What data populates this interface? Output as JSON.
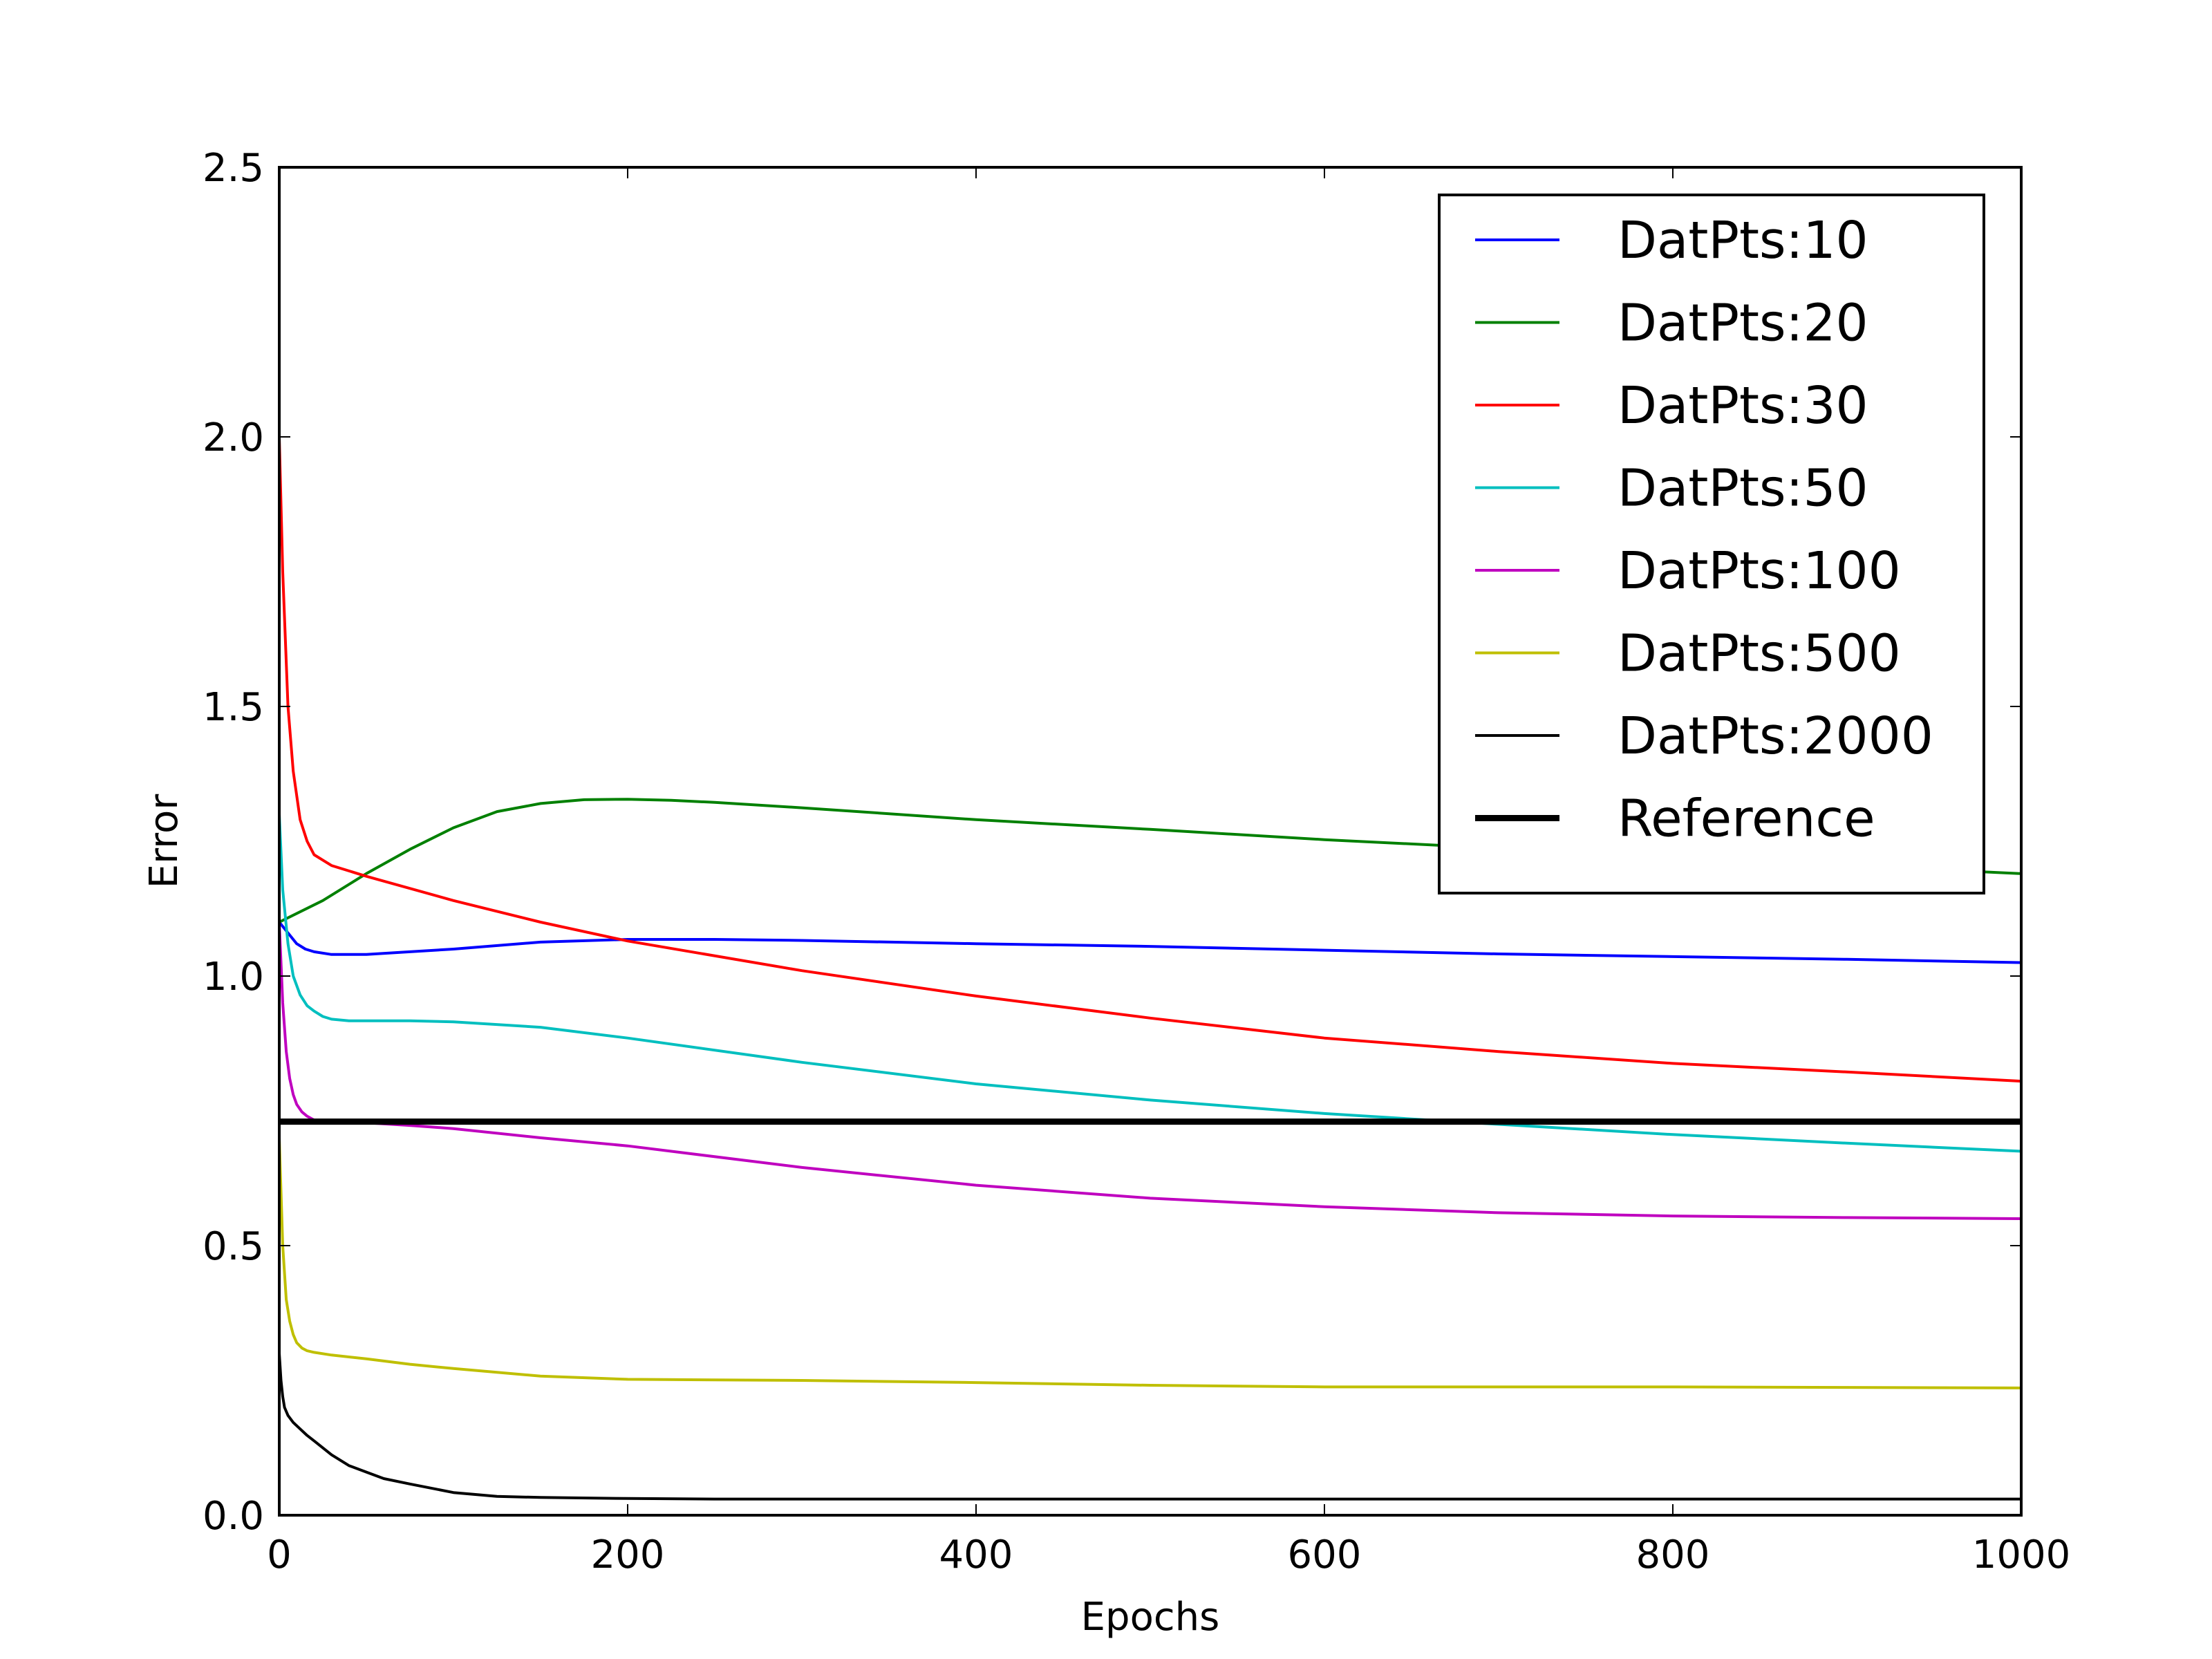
{
  "chart_data": {
    "type": "line",
    "title": "",
    "xlabel": "Epochs",
    "ylabel": "Error",
    "xlim": [
      0,
      1000
    ],
    "ylim": [
      0,
      2.5
    ],
    "xticks": [
      0,
      200,
      400,
      600,
      800,
      1000
    ],
    "xtick_labels": [
      "0",
      "200",
      "400",
      "600",
      "800",
      "1000"
    ],
    "yticks": [
      0,
      0.5,
      1.0,
      1.5,
      2.0,
      2.5
    ],
    "ytick_labels": [
      "0.0",
      "0.5",
      "1.0",
      "1.5",
      "2.0",
      "2.5"
    ],
    "grid": false,
    "legend_position": "top-right",
    "series": [
      {
        "name": "DatPts:10",
        "color": "#0000ff",
        "linewidth": "thin",
        "x": [
          0,
          5,
          10,
          15,
          20,
          30,
          50,
          75,
          100,
          150,
          200,
          250,
          300,
          400,
          500,
          600,
          700,
          800,
          900,
          1000
        ],
        "y": [
          1.1,
          1.08,
          1.06,
          1.05,
          1.045,
          1.04,
          1.04,
          1.045,
          1.05,
          1.063,
          1.068,
          1.068,
          1.066,
          1.06,
          1.055,
          1.048,
          1.041,
          1.036,
          1.031,
          1.025
        ]
      },
      {
        "name": "DatPts:20",
        "color": "#008000",
        "linewidth": "thin",
        "x": [
          0,
          25,
          50,
          75,
          100,
          125,
          150,
          175,
          200,
          225,
          250,
          300,
          400,
          500,
          600,
          700,
          800,
          900,
          1000
        ],
        "y": [
          1.1,
          1.14,
          1.19,
          1.235,
          1.275,
          1.305,
          1.32,
          1.327,
          1.328,
          1.326,
          1.322,
          1.312,
          1.29,
          1.272,
          1.253,
          1.237,
          1.22,
          1.205,
          1.19
        ]
      },
      {
        "name": "DatPts:30",
        "color": "#ff0000",
        "linewidth": "thin",
        "x": [
          0,
          2,
          5,
          8,
          12,
          16,
          20,
          25,
          30,
          40,
          50,
          100,
          150,
          200,
          300,
          400,
          500,
          600,
          700,
          800,
          900,
          1000
        ],
        "y": [
          2.0,
          1.75,
          1.5,
          1.38,
          1.29,
          1.25,
          1.225,
          1.215,
          1.205,
          1.195,
          1.185,
          1.14,
          1.1,
          1.065,
          1.01,
          0.963,
          0.922,
          0.885,
          0.86,
          0.838,
          0.822,
          0.805
        ]
      },
      {
        "name": "DatPts:50",
        "color": "#00bfbf",
        "linewidth": "thin",
        "x": [
          0,
          2,
          5,
          8,
          12,
          16,
          20,
          25,
          30,
          40,
          50,
          75,
          100,
          150,
          200,
          300,
          400,
          500,
          600,
          700,
          800,
          900,
          1000
        ],
        "y": [
          1.3,
          1.16,
          1.06,
          1.0,
          0.965,
          0.945,
          0.935,
          0.925,
          0.92,
          0.917,
          0.917,
          0.917,
          0.915,
          0.905,
          0.885,
          0.84,
          0.8,
          0.77,
          0.745,
          0.725,
          0.706,
          0.69,
          0.675
        ]
      },
      {
        "name": "DatPts:100",
        "color": "#bf00bf",
        "linewidth": "thin",
        "x": [
          0,
          2,
          4,
          6,
          8,
          10,
          13,
          16,
          20,
          25,
          30,
          50,
          75,
          100,
          150,
          200,
          300,
          400,
          500,
          600,
          700,
          800,
          900,
          1000
        ],
        "y": [
          1.1,
          0.95,
          0.86,
          0.81,
          0.78,
          0.762,
          0.748,
          0.74,
          0.733,
          0.731,
          0.73,
          0.728,
          0.723,
          0.717,
          0.7,
          0.685,
          0.645,
          0.612,
          0.588,
          0.572,
          0.561,
          0.555,
          0.552,
          0.55
        ]
      },
      {
        "name": "DatPts:500",
        "color": "#bfbf00",
        "linewidth": "thin",
        "x": [
          0,
          2,
          4,
          6,
          8,
          10,
          13,
          16,
          20,
          30,
          50,
          75,
          100,
          150,
          200,
          300,
          400,
          500,
          600,
          700,
          800,
          900,
          1000
        ],
        "y": [
          0.7,
          0.5,
          0.4,
          0.36,
          0.335,
          0.32,
          0.31,
          0.305,
          0.302,
          0.297,
          0.29,
          0.28,
          0.272,
          0.258,
          0.252,
          0.25,
          0.246,
          0.241,
          0.238,
          0.238,
          0.238,
          0.237,
          0.236
        ]
      },
      {
        "name": "DatPts:2000",
        "color": "#000000",
        "linewidth": "thin",
        "x": [
          0,
          1,
          2,
          3,
          5,
          8,
          12,
          16,
          20,
          30,
          40,
          50,
          60,
          75,
          100,
          125,
          150,
          200,
          250,
          300,
          400,
          500,
          600,
          700,
          800,
          900,
          1000
        ],
        "y": [
          0.3,
          0.25,
          0.22,
          0.2,
          0.185,
          0.172,
          0.16,
          0.148,
          0.138,
          0.112,
          0.092,
          0.08,
          0.068,
          0.058,
          0.042,
          0.035,
          0.033,
          0.031,
          0.03,
          0.03,
          0.03,
          0.03,
          0.03,
          0.03,
          0.03,
          0.03,
          0.03
        ]
      },
      {
        "name": "Reference",
        "color": "#000000",
        "linewidth": "thick",
        "x": [
          0,
          1000
        ],
        "y": [
          0.73,
          0.73
        ]
      }
    ]
  }
}
